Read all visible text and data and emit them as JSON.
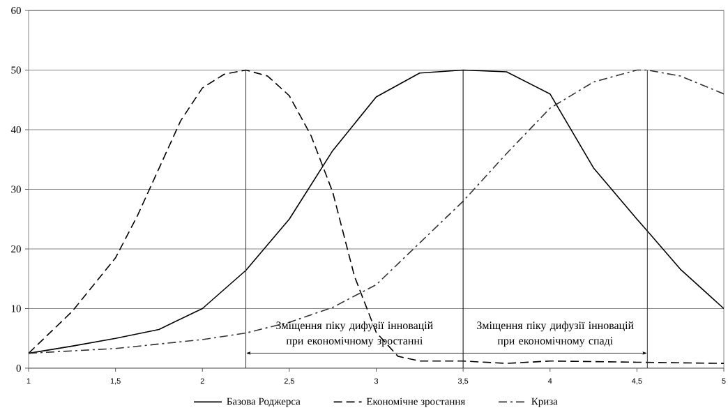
{
  "chart_data": {
    "type": "line",
    "x": [
      1,
      1.125,
      1.25,
      1.375,
      1.5,
      1.625,
      1.75,
      1.875,
      2,
      2.125,
      2.25,
      2.375,
      2.5,
      2.625,
      2.75,
      2.875,
      3,
      3.125,
      3.25,
      3.5,
      3.75,
      4,
      4.5,
      5
    ],
    "series": [
      {
        "name": "Базова Роджерса",
        "color": "#000000",
        "line_style": "solid",
        "x": [
          1,
          1.25,
          1.5,
          1.75,
          2,
          2.25,
          2.5,
          2.75,
          3,
          3.25,
          3.5,
          3.75,
          4,
          4.25,
          4.5,
          4.56,
          4.75,
          5
        ],
        "values": [
          2.5,
          3.7,
          5,
          6.5,
          10,
          16.4,
          25,
          36.5,
          45.5,
          49.5,
          50,
          49.7,
          46,
          33.6,
          25,
          23,
          16.6,
          10
        ]
      },
      {
        "name": "Економічне зростання",
        "color": "#000000",
        "line_style": "dashed",
        "values": [
          2.5,
          6,
          9.5,
          14,
          18.5,
          25.5,
          33.5,
          41.5,
          47,
          49.3,
          50,
          49,
          45.7,
          39,
          29.5,
          15.4,
          6,
          2,
          1.2,
          1.2,
          0.8,
          1.2,
          1,
          0.8
        ]
      },
      {
        "name": "Криза",
        "color": "#333333",
        "line_style": "dashdot",
        "x": [
          1,
          1.5,
          2,
          2.25,
          2.5,
          2.75,
          3,
          3.25,
          3.5,
          3.75,
          4,
          4.25,
          4.5,
          4.56,
          4.75,
          5
        ],
        "values": [
          2.5,
          3.3,
          4.8,
          5.9,
          7.7,
          10.2,
          14,
          21,
          28,
          36,
          43.6,
          48,
          50,
          50,
          49,
          46
        ]
      }
    ],
    "xlim": [
      1,
      5
    ],
    "ylim": [
      0,
      60
    ],
    "xticks": [
      1,
      {
        "value": 1.5,
        "label": "1,5"
      },
      2,
      {
        "value": 2.5,
        "label": "2,5"
      },
      3,
      {
        "value": 3.5,
        "label": "3,5"
      },
      4,
      {
        "value": 4.5,
        "label": "4,5"
      },
      5
    ],
    "yticks": [
      0,
      10,
      20,
      30,
      40,
      50,
      60
    ],
    "grid": "y",
    "legend": "bottom",
    "ref_lines": [
      {
        "axis": "x",
        "value": 2.25,
        "color": "#333333"
      },
      {
        "axis": "x",
        "value": 3.5,
        "color": "#000000"
      },
      {
        "axis": "x",
        "value": 4.56,
        "color": "#333333"
      }
    ],
    "annotations": [
      "Зміщення піку дифузії інновацій при економічному зростанні",
      "Зміщення піку дифузії інновацій при економічному спаді"
    ]
  }
}
